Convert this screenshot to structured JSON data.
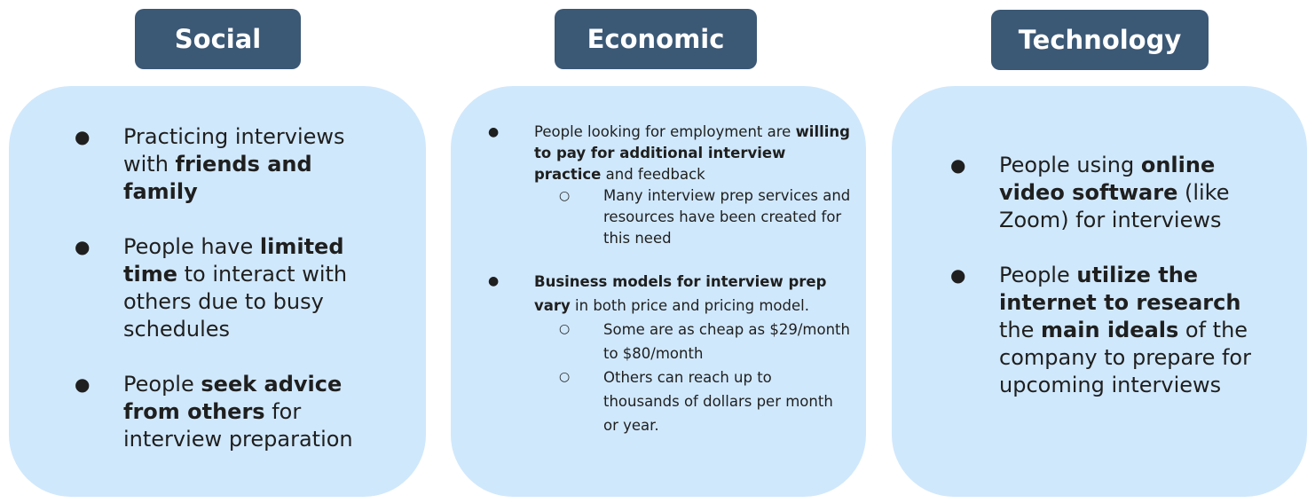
{
  "headers": {
    "social": "Social",
    "economic": "Economic",
    "technology": "Technology"
  },
  "colors": {
    "header_bg": "#3b5875",
    "panel_bg": "#d0e8fc",
    "header_text": "#ffffff"
  },
  "bullet_glyph": "●",
  "sub_bullet_glyph": "○",
  "social": {
    "items": [
      {
        "t1": "Practicing interviews with ",
        "b1": "friends and family"
      },
      {
        "t1": "People have ",
        "b1": "limited time",
        "t2": " to interact with others due to busy schedules"
      },
      {
        "t1": "People ",
        "b1": "seek advice from others",
        "t2": " for interview preparation"
      }
    ]
  },
  "economic": {
    "items": [
      {
        "t1": "People looking for employment are ",
        "b1": "willing to pay for additional interview practice",
        "t2": " and feedback",
        "sub": [
          "Many interview prep services and resources have been created for this need"
        ]
      },
      {
        "b1": "Business models for interview prep vary",
        "t2": " in both price and pricing model.",
        "sub": [
          "Some are as cheap as $29/month to $80/month",
          "Others can reach up to thousands of dollars per month or year."
        ]
      }
    ]
  },
  "technology": {
    "items": [
      {
        "t1": "People using ",
        "b1": "online video software",
        "t2": " (like Zoom) for interviews"
      },
      {
        "t1": "People ",
        "b1": "utilize the internet to research",
        "t2": " the ",
        "b2": "main ideals",
        "t3": " of the company to prepare for upcoming interviews"
      }
    ]
  }
}
